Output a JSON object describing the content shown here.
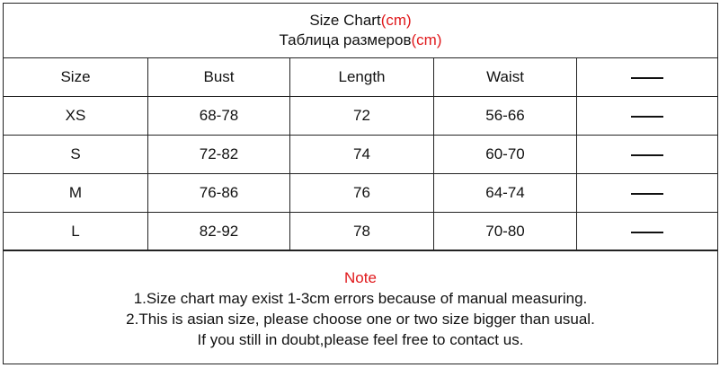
{
  "title": {
    "line1": "Size Chart",
    "line1_unit": "(cm)",
    "line2": "Таблица размеров",
    "line2_unit": "(cm)"
  },
  "table": {
    "headers": [
      "Size",
      "Bust",
      "Length",
      "Waist",
      "—"
    ],
    "rows": [
      [
        "XS",
        "68-78",
        "72",
        "56-66",
        "—"
      ],
      [
        "S",
        "72-82",
        "74",
        "60-70",
        "—"
      ],
      [
        "M",
        "76-86",
        "76",
        "64-74",
        "—"
      ],
      [
        "L",
        "82-92",
        "78",
        "70-80",
        "—"
      ]
    ]
  },
  "note": {
    "heading": "Note",
    "lines": [
      "1.Size chart may exist 1-3cm errors because of manual measuring.",
      "2.This is asian size, please choose one or two size bigger than usual.",
      "If you still in doubt,please feel free to contact us."
    ]
  },
  "colors": {
    "accent": "#e0191c",
    "text": "#111111",
    "border": "#222222"
  }
}
